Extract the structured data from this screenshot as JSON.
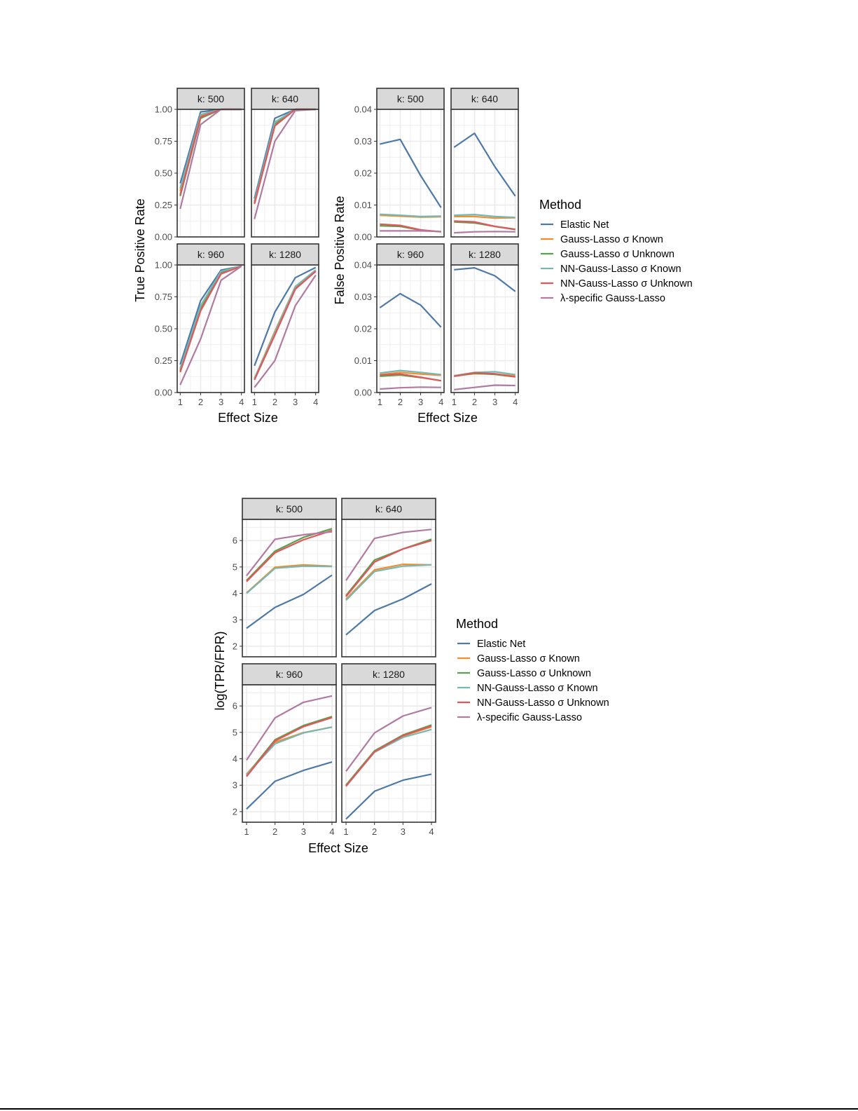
{
  "colors": {
    "Elastic Net": "#4e79a7",
    "Gauss-Lasso σ Known": "#f28e2b",
    "Gauss-Lasso σ Unknown": "#59a14f",
    "NN-Gauss-Lasso σ Known": "#76b7b2",
    "NN-Gauss-Lasso σ Unknown": "#e15759",
    "λ-specific Gauss-Lasso": "#b07aa1"
  },
  "legend": {
    "title": "Method",
    "items": [
      "Elastic Net",
      "Gauss-Lasso σ Known",
      "Gauss-Lasso σ Unknown",
      "NN-Gauss-Lasso σ Known",
      "NN-Gauss-Lasso σ Unknown",
      "λ-specific Gauss-Lasso"
    ]
  },
  "chart_data": [
    {
      "type": "line",
      "ylabel": "True Positive Rate",
      "xlabel": "Effect Size",
      "x": [
        1,
        2,
        3,
        4
      ],
      "xticks": [
        "1",
        "2",
        "3",
        "4"
      ],
      "ylim": [
        0,
        1
      ],
      "yticks": [
        "0.00",
        "0.25",
        "0.50",
        "0.75",
        "1.00"
      ],
      "grid": true,
      "panels": [
        {
          "label": "k: 500",
          "series": [
            {
              "name": "Elastic Net",
              "values": [
                0.42,
                0.98,
                1.0,
                1.0
              ]
            },
            {
              "name": "Gauss-Lasso σ Known",
              "values": [
                0.36,
                0.95,
                1.0,
                1.0
              ]
            },
            {
              "name": "Gauss-Lasso σ Unknown",
              "values": [
                0.32,
                0.93,
                1.0,
                1.0
              ]
            },
            {
              "name": "NN-Gauss-Lasso σ Known",
              "values": [
                0.38,
                0.96,
                1.0,
                1.0
              ]
            },
            {
              "name": "NN-Gauss-Lasso σ Unknown",
              "values": [
                0.33,
                0.94,
                1.0,
                1.0
              ]
            },
            {
              "name": "λ-specific Gauss-Lasso",
              "values": [
                0.22,
                0.88,
                1.0,
                1.0
              ]
            }
          ]
        },
        {
          "label": "k: 640",
          "series": [
            {
              "name": "Elastic Net",
              "values": [
                0.3,
                0.93,
                1.0,
                1.0
              ]
            },
            {
              "name": "Gauss-Lasso σ Known",
              "values": [
                0.27,
                0.89,
                1.0,
                1.0
              ]
            },
            {
              "name": "Gauss-Lasso σ Unknown",
              "values": [
                0.26,
                0.88,
                1.0,
                1.0
              ]
            },
            {
              "name": "NN-Gauss-Lasso σ Known",
              "values": [
                0.28,
                0.9,
                1.0,
                1.0
              ]
            },
            {
              "name": "NN-Gauss-Lasso σ Unknown",
              "values": [
                0.26,
                0.87,
                1.0,
                1.0
              ]
            },
            {
              "name": "λ-specific Gauss-Lasso",
              "values": [
                0.14,
                0.75,
                0.99,
                1.0
              ]
            }
          ]
        },
        {
          "label": "k: 960",
          "series": [
            {
              "name": "Elastic Net",
              "values": [
                0.22,
                0.72,
                0.96,
                0.99
              ]
            },
            {
              "name": "Gauss-Lasso σ Known",
              "values": [
                0.18,
                0.66,
                0.94,
                0.99
              ]
            },
            {
              "name": "Gauss-Lasso σ Unknown",
              "values": [
                0.17,
                0.65,
                0.94,
                0.99
              ]
            },
            {
              "name": "NN-Gauss-Lasso σ Known",
              "values": [
                0.19,
                0.68,
                0.95,
                0.99
              ]
            },
            {
              "name": "NN-Gauss-Lasso σ Unknown",
              "values": [
                0.16,
                0.64,
                0.93,
                0.99
              ]
            },
            {
              "name": "λ-specific Gauss-Lasso",
              "values": [
                0.06,
                0.42,
                0.88,
                0.99
              ]
            }
          ]
        },
        {
          "label": "k: 1280",
          "series": [
            {
              "name": "Elastic Net",
              "values": [
                0.21,
                0.63,
                0.9,
                0.98
              ]
            },
            {
              "name": "Gauss-Lasso σ Known",
              "values": [
                0.11,
                0.48,
                0.83,
                0.96
              ]
            },
            {
              "name": "Gauss-Lasso σ Unknown",
              "values": [
                0.1,
                0.46,
                0.82,
                0.95
              ]
            },
            {
              "name": "NN-Gauss-Lasso σ Known",
              "values": [
                0.11,
                0.47,
                0.83,
                0.96
              ]
            },
            {
              "name": "NN-Gauss-Lasso σ Unknown",
              "values": [
                0.1,
                0.45,
                0.81,
                0.95
              ]
            },
            {
              "name": "λ-specific Gauss-Lasso",
              "values": [
                0.04,
                0.25,
                0.68,
                0.92
              ]
            }
          ]
        }
      ]
    },
    {
      "type": "line",
      "ylabel": "False Positive Rate",
      "xlabel": "Effect Size",
      "x": [
        1,
        2,
        3,
        4
      ],
      "xticks": [
        "1",
        "2",
        "3",
        "4"
      ],
      "ylim": [
        0,
        0.04
      ],
      "yticks": [
        "0.00",
        "0.01",
        "0.02",
        "0.03",
        "0.04"
      ],
      "grid": true,
      "panels": [
        {
          "label": "k: 500",
          "series": [
            {
              "name": "Elastic Net",
              "values": [
                0.0291,
                0.0306,
                0.0192,
                0.0092
              ]
            },
            {
              "name": "Gauss-Lasso σ Known",
              "values": [
                0.0068,
                0.0065,
                0.0062,
                0.0063
              ]
            },
            {
              "name": "Gauss-Lasso σ Unknown",
              "values": [
                0.0035,
                0.0033,
                0.0021,
                0.0016
              ]
            },
            {
              "name": "NN-Gauss-Lasso σ Known",
              "values": [
                0.0071,
                0.0068,
                0.0064,
                0.0065
              ]
            },
            {
              "name": "NN-Gauss-Lasso σ Unknown",
              "values": [
                0.004,
                0.0036,
                0.0022,
                0.0016
              ]
            },
            {
              "name": "λ-specific Gauss-Lasso",
              "values": [
                0.0019,
                0.0019,
                0.0019,
                0.0017
              ]
            }
          ]
        },
        {
          "label": "k: 640",
          "series": [
            {
              "name": "Elastic Net",
              "values": [
                0.0281,
                0.0325,
                0.022,
                0.0128
              ]
            },
            {
              "name": "Gauss-Lasso σ Known",
              "values": [
                0.0064,
                0.0064,
                0.0059,
                0.006
              ]
            },
            {
              "name": "Gauss-Lasso σ Unknown",
              "values": [
                0.0047,
                0.0044,
                0.0033,
                0.0023
              ]
            },
            {
              "name": "NN-Gauss-Lasso σ Known",
              "values": [
                0.0068,
                0.007,
                0.0064,
                0.0061
              ]
            },
            {
              "name": "NN-Gauss-Lasso σ Unknown",
              "values": [
                0.005,
                0.0047,
                0.0033,
                0.0024
              ]
            },
            {
              "name": "λ-specific Gauss-Lasso",
              "values": [
                0.0013,
                0.0016,
                0.0017,
                0.0016
              ]
            }
          ]
        },
        {
          "label": "k: 960",
          "series": [
            {
              "name": "Elastic Net",
              "values": [
                0.0266,
                0.031,
                0.0274,
                0.0205
              ]
            },
            {
              "name": "Gauss-Lasso σ Known",
              "values": [
                0.0056,
                0.0063,
                0.0058,
                0.0054
              ]
            },
            {
              "name": "Gauss-Lasso σ Unknown",
              "values": [
                0.0051,
                0.0055,
                0.0047,
                0.0037
              ]
            },
            {
              "name": "NN-Gauss-Lasso σ Known",
              "values": [
                0.0061,
                0.0069,
                0.0063,
                0.0056
              ]
            },
            {
              "name": "NN-Gauss-Lasso σ Unknown",
              "values": [
                0.0055,
                0.0058,
                0.0048,
                0.0037
              ]
            },
            {
              "name": "λ-specific Gauss-Lasso",
              "values": [
                0.0011,
                0.0015,
                0.0017,
                0.0016
              ]
            }
          ]
        },
        {
          "label": "k: 1280",
          "series": [
            {
              "name": "Elastic Net",
              "values": [
                0.0385,
                0.0391,
                0.0366,
                0.0317
              ]
            },
            {
              "name": "Gauss-Lasso σ Known",
              "values": [
                0.0052,
                0.0059,
                0.0058,
                0.0052
              ]
            },
            {
              "name": "Gauss-Lasso σ Unknown",
              "values": [
                0.0051,
                0.006,
                0.0057,
                0.0049
              ]
            },
            {
              "name": "NN-Gauss-Lasso σ Known",
              "values": [
                0.0053,
                0.0063,
                0.0065,
                0.0056
              ]
            },
            {
              "name": "NN-Gauss-Lasso σ Unknown",
              "values": [
                0.0051,
                0.0062,
                0.0059,
                0.0049
              ]
            },
            {
              "name": "λ-specific Gauss-Lasso",
              "values": [
                0.0009,
                0.0016,
                0.0023,
                0.0022
              ]
            }
          ]
        }
      ]
    },
    {
      "type": "line",
      "ylabel": "log(TPR/FPR)",
      "xlabel": "Effect Size",
      "x": [
        1,
        2,
        3,
        4
      ],
      "xticks": [
        "1",
        "2",
        "3",
        "4"
      ],
      "ylim": [
        1.6,
        6.8
      ],
      "yticks": [
        "2",
        "3",
        "4",
        "5",
        "6"
      ],
      "grid": true,
      "panels": [
        {
          "label": "k: 500",
          "series": [
            {
              "name": "Elastic Net",
              "values": [
                2.68,
                3.47,
                3.96,
                4.69
              ]
            },
            {
              "name": "Gauss-Lasso σ Known",
              "values": [
                4.02,
                4.99,
                5.08,
                5.03
              ]
            },
            {
              "name": "Gauss-Lasso σ Unknown",
              "values": [
                4.49,
                5.6,
                6.12,
                6.45
              ]
            },
            {
              "name": "NN-Gauss-Lasso σ Known",
              "values": [
                4.0,
                4.95,
                5.03,
                5.02
              ]
            },
            {
              "name": "NN-Gauss-Lasso σ Unknown",
              "values": [
                4.45,
                5.54,
                6.03,
                6.38
              ]
            },
            {
              "name": "λ-specific Gauss-Lasso",
              "values": [
                4.67,
                6.05,
                6.22,
                6.33
              ]
            }
          ]
        },
        {
          "label": "k: 640",
          "series": [
            {
              "name": "Elastic Net",
              "values": [
                2.43,
                3.35,
                3.79,
                4.36
              ]
            },
            {
              "name": "Gauss-Lasso σ Known",
              "values": [
                3.78,
                4.89,
                5.1,
                5.08
              ]
            },
            {
              "name": "Gauss-Lasso σ Unknown",
              "values": [
                3.92,
                5.26,
                5.68,
                6.05
              ]
            },
            {
              "name": "NN-Gauss-Lasso σ Known",
              "values": [
                3.74,
                4.83,
                5.03,
                5.08
              ]
            },
            {
              "name": "NN-Gauss-Lasso σ Unknown",
              "values": [
                3.88,
                5.19,
                5.68,
                6.0
              ]
            },
            {
              "name": "λ-specific Gauss-Lasso",
              "values": [
                4.49,
                6.08,
                6.31,
                6.42
              ]
            }
          ]
        },
        {
          "label": "k: 960",
          "series": [
            {
              "name": "Elastic Net",
              "values": [
                2.1,
                3.15,
                3.56,
                3.88
              ]
            },
            {
              "name": "Gauss-Lasso σ Known",
              "values": [
                3.42,
                4.63,
                4.99,
                5.2
              ]
            },
            {
              "name": "Gauss-Lasso σ Unknown",
              "values": [
                3.38,
                4.72,
                5.26,
                5.6
              ]
            },
            {
              "name": "NN-Gauss-Lasso σ Known",
              "values": [
                3.4,
                4.57,
                4.98,
                5.2
              ]
            },
            {
              "name": "NN-Gauss-Lasso σ Unknown",
              "values": [
                3.33,
                4.68,
                5.22,
                5.56
              ]
            },
            {
              "name": "λ-specific Gauss-Lasso",
              "values": [
                3.95,
                5.55,
                6.14,
                6.38
              ]
            }
          ]
        },
        {
          "label": "k: 1280",
          "series": [
            {
              "name": "Elastic Net",
              "values": [
                1.72,
                2.77,
                3.19,
                3.42
              ]
            },
            {
              "name": "Gauss-Lasso σ Known",
              "values": [
                2.99,
                4.29,
                4.86,
                5.21
              ]
            },
            {
              "name": "Gauss-Lasso σ Unknown",
              "values": [
                3.01,
                4.3,
                4.9,
                5.28
              ]
            },
            {
              "name": "NN-Gauss-Lasso σ Known",
              "values": [
                2.97,
                4.25,
                4.81,
                5.11
              ]
            },
            {
              "name": "NN-Gauss-Lasso σ Unknown",
              "values": [
                2.96,
                4.27,
                4.88,
                5.24
              ]
            },
            {
              "name": "λ-specific Gauss-Lasso",
              "values": [
                3.53,
                4.98,
                5.62,
                5.94
              ]
            }
          ]
        }
      ]
    }
  ]
}
